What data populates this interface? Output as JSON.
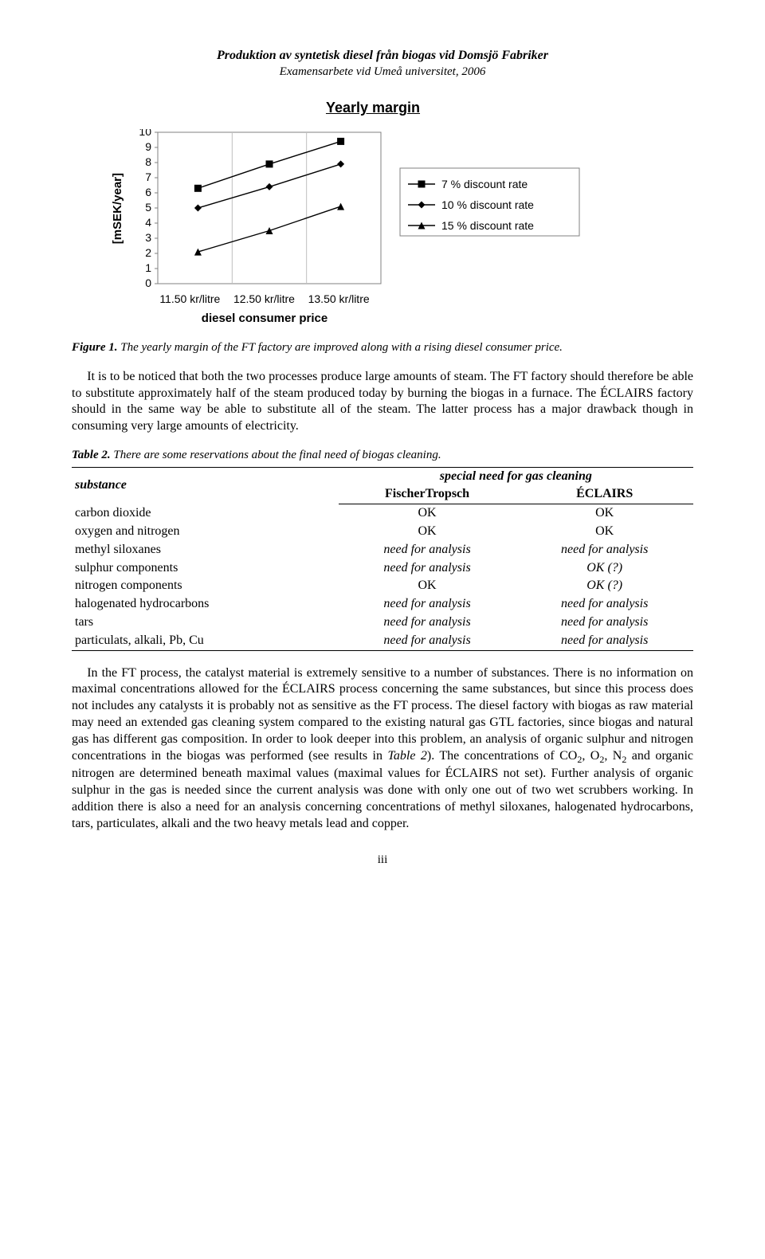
{
  "header": {
    "title": "Produktion av syntetisk diesel från biogas vid Domsjö Fabriker",
    "subtitle": "Examensarbete vid Umeå universitet, 2006"
  },
  "chart": {
    "type": "line",
    "title": "Yearly margin",
    "ylabel": "[mSEK/year]",
    "xlabel": "diesel consumer price",
    "ylim": [
      0,
      10
    ],
    "ytick_step": 1,
    "categories": [
      "11.50 kr/litre",
      "12.50 kr/litre",
      "13.50 kr/litre"
    ],
    "series": [
      {
        "name": "7 % discount rate",
        "values": [
          6.3,
          7.9,
          9.4
        ],
        "marker": "square",
        "color": "#000000"
      },
      {
        "name": "10 % discount rate",
        "values": [
          5.0,
          6.4,
          7.9
        ],
        "marker": "diamond",
        "color": "#000000"
      },
      {
        "name": "15 % discount rate",
        "values": [
          2.1,
          3.5,
          5.1
        ],
        "marker": "triangle",
        "color": "#000000"
      }
    ],
    "background_color": "#ffffff",
    "axis_color": "#808080",
    "grid_color": "#c0c0c0",
    "marker_size": 9,
    "line_width": 1.4,
    "legend_font_size": 14,
    "tick_font_size": 14,
    "label_font_size": 15,
    "title_font_size": 18
  },
  "figure": {
    "label": "Figure 1.",
    "caption": "The yearly margin of the FT factory are improved along with a rising diesel consumer price."
  },
  "para1": "It is to be noticed that both the two processes produce large amounts of steam. The FT factory should therefore be able to substitute approximately half of the steam produced today by burning the biogas in a furnace. The ÉCLAIRS factory should in the same way be able to substitute all of the steam. The latter process has a major drawback though in consuming very large amounts of electricity.",
  "table2": {
    "label": "Table 2.",
    "caption": "There are some reservations about the final need of biogas cleaning.",
    "head": {
      "c1": "substance",
      "c2_span": "special need for gas cleaning",
      "c2a": "FischerTropsch",
      "c2b": "ÉCLAIRS"
    },
    "rows": [
      {
        "s": "carbon dioxide",
        "ft": "OK",
        "ec": "OK",
        "ft_ital": false,
        "ec_ital": false
      },
      {
        "s": "oxygen and nitrogen",
        "ft": "OK",
        "ec": "OK",
        "ft_ital": false,
        "ec_ital": false
      },
      {
        "s": "methyl siloxanes",
        "ft": "need for analysis",
        "ec": "need for analysis",
        "ft_ital": true,
        "ec_ital": true
      },
      {
        "s": "sulphur components",
        "ft": "need for analysis",
        "ec": "OK (?)",
        "ft_ital": true,
        "ec_ital": true
      },
      {
        "s": "nitrogen components",
        "ft": "OK",
        "ec": "OK (?)",
        "ft_ital": false,
        "ec_ital": true
      },
      {
        "s": "halogenated hydrocarbons",
        "ft": "need for analysis",
        "ec": "need for analysis",
        "ft_ital": true,
        "ec_ital": true
      },
      {
        "s": "tars",
        "ft": "need for analysis",
        "ec": "need for analysis",
        "ft_ital": true,
        "ec_ital": true
      },
      {
        "s": "particulats, alkali, Pb, Cu",
        "ft": "need for analysis",
        "ec": "need for analysis",
        "ft_ital": true,
        "ec_ital": true
      }
    ]
  },
  "para2_html": "In the FT process, the catalyst material is extremely sensitive to a number of substances. There is no information on maximal concentrations allowed for the ÉCLAIRS process concerning the same substances, but since this process does not includes any catalysts it is probably not as sensitive as the FT process. The diesel factory with biogas as raw material may need an extended gas cleaning system compared to the existing natural gas GTL factories, since biogas and natural gas has different gas composition. In order to look deeper into this problem, an analysis of organic sulphur and nitrogen concentrations in the biogas was performed (see results in <i>Table 2</i>). The concentrations of CO<sub>2</sub>, O<sub>2</sub>, N<sub>2</sub> and organic nitrogen are determined beneath maximal values (maximal values for ÉCLAIRS not set). Further analysis of organic sulphur in the gas is needed since the current analysis was done with only one out of two wet scrubbers working. In addition there is also a need for an analysis concerning concentrations of methyl siloxanes, halogenated hydrocarbons, tars, particulates, alkali and the two heavy metals lead and copper.",
  "page_number": "iii"
}
